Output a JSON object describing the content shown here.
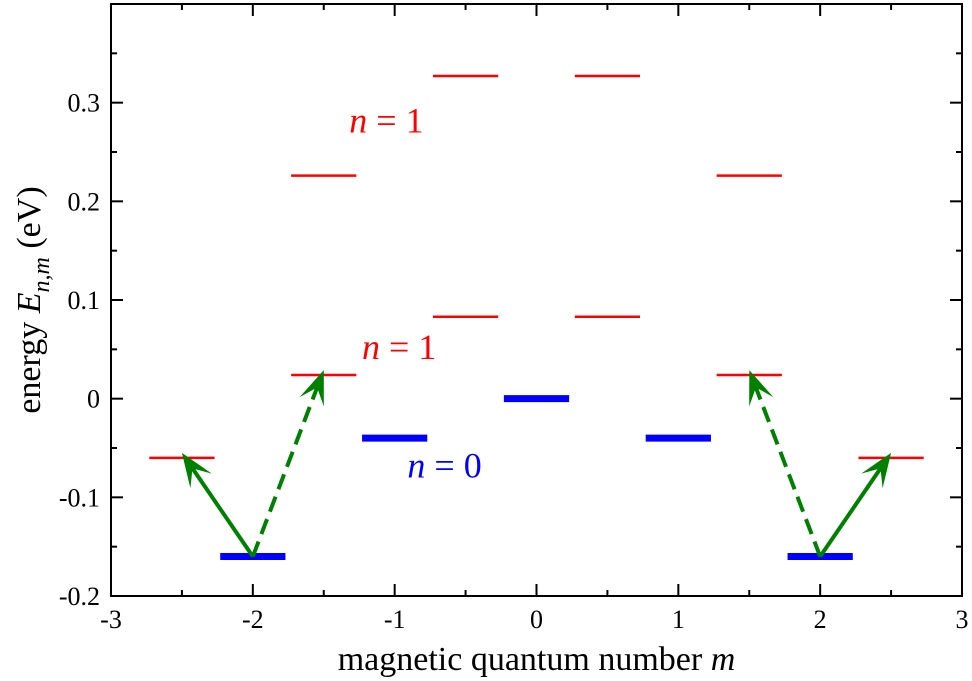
{
  "chart_data": {
    "type": "scatter",
    "description_kind": "energy level diagram",
    "xlabel": {
      "prefix": "magnetic quantum number ",
      "var": "m"
    },
    "ylabel": {
      "prefix": "energy ",
      "var": "E",
      "sub": "n,m",
      "suffix": " (eV)"
    },
    "xlim": [
      -3,
      3
    ],
    "ylim": [
      -0.2,
      0.4
    ],
    "x_ticks": [
      {
        "value": -3,
        "label": "-3"
      },
      {
        "value": -2,
        "label": "-2"
      },
      {
        "value": -1,
        "label": "-1"
      },
      {
        "value": 0,
        "label": "0"
      },
      {
        "value": 1,
        "label": "1"
      },
      {
        "value": 2,
        "label": "2"
      },
      {
        "value": 3,
        "label": "3"
      }
    ],
    "y_ticks": [
      {
        "value": -0.2,
        "label": "-0.2"
      },
      {
        "value": -0.1,
        "label": "-0.1"
      },
      {
        "value": 0,
        "label": "0"
      },
      {
        "value": 0.1,
        "label": "0.1"
      },
      {
        "value": 0.2,
        "label": "0.2"
      },
      {
        "value": 0.3,
        "label": "0.3"
      }
    ],
    "colors": {
      "n0": "#0000ff",
      "n1": "#ff0000",
      "arrow": "#008000"
    },
    "levels": [
      {
        "group": "n0",
        "x1": -2.23,
        "x2": -1.77,
        "energy": -0.16
      },
      {
        "group": "n0",
        "x1": -1.23,
        "x2": -0.77,
        "energy": -0.04
      },
      {
        "group": "n0",
        "x1": -0.23,
        "x2": 0.23,
        "energy": 0.0
      },
      {
        "group": "n0",
        "x1": 0.77,
        "x2": 1.23,
        "energy": -0.04
      },
      {
        "group": "n0",
        "x1": 1.77,
        "x2": 2.23,
        "energy": -0.16
      },
      {
        "group": "n1",
        "x1": -2.73,
        "x2": -2.27,
        "energy": -0.06
      },
      {
        "group": "n1",
        "x1": -1.73,
        "x2": -1.27,
        "energy": 0.024
      },
      {
        "group": "n1",
        "x1": -0.73,
        "x2": -0.27,
        "energy": 0.083
      },
      {
        "group": "n1",
        "x1": 0.27,
        "x2": 0.73,
        "energy": 0.083
      },
      {
        "group": "n1",
        "x1": 1.27,
        "x2": 1.73,
        "energy": 0.024
      },
      {
        "group": "n1",
        "x1": 2.27,
        "x2": 2.73,
        "energy": -0.06
      },
      {
        "group": "n1",
        "x1": -1.73,
        "x2": -1.27,
        "energy": 0.226
      },
      {
        "group": "n1",
        "x1": -0.73,
        "x2": -0.27,
        "energy": 0.327
      },
      {
        "group": "n1",
        "x1": 0.27,
        "x2": 0.73,
        "energy": 0.327
      },
      {
        "group": "n1",
        "x1": 1.27,
        "x2": 1.73,
        "energy": 0.226
      }
    ],
    "transitions": [
      {
        "from": [
          -2,
          -0.16
        ],
        "to": [
          -2.5,
          -0.055
        ],
        "style": "solid"
      },
      {
        "from": [
          -2,
          -0.16
        ],
        "to": [
          -1.5,
          0.029
        ],
        "style": "dashed"
      },
      {
        "from": [
          2,
          -0.16
        ],
        "to": [
          1.5,
          0.029
        ],
        "style": "dashed"
      },
      {
        "from": [
          2,
          -0.16
        ],
        "to": [
          2.5,
          -0.055
        ],
        "style": "solid"
      }
    ],
    "annotations": [
      {
        "var": "n",
        "rest": " = 1",
        "x": -1.32,
        "y": 0.27,
        "group": "n1"
      },
      {
        "var": "n",
        "rest": " = 1",
        "x": -1.23,
        "y": 0.04,
        "group": "n1"
      },
      {
        "var": "n",
        "rest": " = 0",
        "x": -0.91,
        "y": -0.08,
        "group": "n0"
      }
    ]
  }
}
